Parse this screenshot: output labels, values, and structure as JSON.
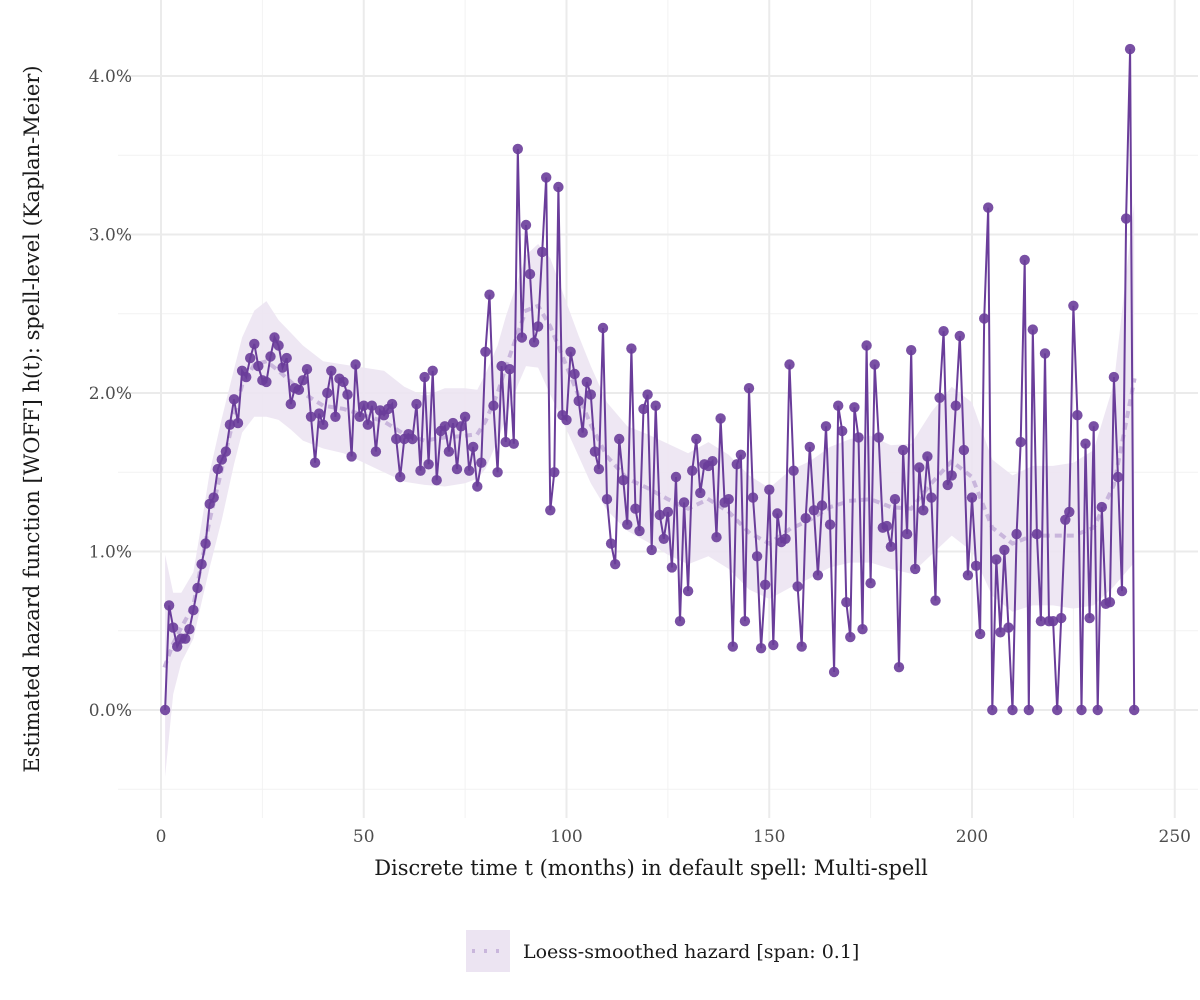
{
  "chart_data": {
    "type": "line",
    "title": "",
    "xlabel": "Discrete time t (months) in default spell: Multi-spell",
    "ylabel": "Estimated hazard function [WOFF] h(t): spell-level (Kaplan-Meier)",
    "xlim": [
      -10,
      255
    ],
    "ylim": [
      -0.7,
      4.3
    ],
    "y_unit": "%",
    "x_ticks": [
      0,
      50,
      100,
      150,
      200,
      250
    ],
    "x_tick_labels": [
      "0",
      "50",
      "100",
      "150",
      "200",
      "250"
    ],
    "y_ticks": [
      0,
      1,
      2,
      3,
      4
    ],
    "y_tick_labels": [
      "0.0%",
      "1.0%",
      "2.0%",
      "3.0%",
      "4.0%"
    ],
    "grid": true,
    "legend": {
      "position": "bottom",
      "entries": [
        "Loess-smoothed hazard [span: 0.1]"
      ]
    },
    "colors": {
      "line": "#6a3d9a",
      "points": "#6a3d9a",
      "smooth": "#c9b6dc",
      "band": "#ece4f2"
    },
    "series": [
      {
        "name": "hazard",
        "x": [
          1,
          2,
          3,
          4,
          5,
          6,
          7,
          8,
          9,
          10,
          11,
          12,
          13,
          14,
          15,
          16,
          17,
          18,
          19,
          20,
          21,
          22,
          23,
          24,
          25,
          26,
          27,
          28,
          29,
          30,
          31,
          32,
          33,
          34,
          35,
          36,
          37,
          38,
          39,
          40,
          41,
          42,
          43,
          44,
          45,
          46,
          47,
          48,
          49,
          50,
          51,
          52,
          53,
          54,
          55,
          56,
          57,
          58,
          59,
          60,
          61,
          62,
          63,
          64,
          65,
          66,
          67,
          68,
          69,
          70,
          71,
          72,
          73,
          74,
          75,
          76,
          77,
          78,
          79,
          80,
          81,
          82,
          83,
          84,
          85,
          86,
          87,
          88,
          89,
          90,
          91,
          92,
          93,
          94,
          95,
          96,
          97,
          98,
          99,
          100,
          101,
          102,
          103,
          104,
          105,
          106,
          107,
          108,
          109,
          110,
          111,
          112,
          113,
          114,
          115,
          116,
          117,
          118,
          119,
          120,
          121,
          122,
          123,
          124,
          125,
          126,
          127,
          128,
          129,
          130,
          131,
          132,
          133,
          134,
          135,
          136,
          137,
          138,
          139,
          140,
          141,
          142,
          143,
          144,
          145,
          146,
          147,
          148,
          149,
          150,
          151,
          152,
          153,
          154,
          155,
          156,
          157,
          158,
          159,
          160,
          161,
          162,
          163,
          164,
          165,
          166,
          167,
          168,
          169,
          170,
          171,
          172,
          173,
          174,
          175,
          176,
          177,
          178,
          179,
          180,
          181,
          182,
          183,
          184,
          185,
          186,
          187,
          188,
          189,
          190,
          191,
          192,
          193,
          194,
          195,
          196,
          197,
          198,
          199,
          200,
          201,
          202,
          203,
          204,
          205,
          206,
          207,
          208,
          209,
          210,
          211,
          212,
          213,
          214,
          215,
          216,
          217,
          218,
          219,
          220,
          221,
          222,
          223,
          224,
          225,
          226,
          227,
          228,
          229,
          230,
          231,
          232,
          233,
          234,
          235,
          236,
          237,
          238,
          239,
          240
        ],
        "values": [
          0.0,
          0.66,
          0.52,
          0.4,
          0.45,
          0.45,
          0.51,
          0.63,
          0.77,
          0.92,
          1.05,
          1.3,
          1.34,
          1.52,
          1.58,
          1.63,
          1.8,
          1.96,
          1.81,
          2.14,
          2.1,
          2.22,
          2.31,
          2.17,
          2.08,
          2.07,
          2.23,
          2.35,
          2.3,
          2.16,
          2.22,
          1.93,
          2.03,
          2.02,
          2.08,
          2.15,
          1.85,
          1.56,
          1.87,
          1.8,
          2.0,
          2.14,
          1.85,
          2.09,
          2.07,
          1.99,
          1.6,
          2.18,
          1.85,
          1.92,
          1.8,
          1.92,
          1.63,
          1.89,
          1.86,
          1.9,
          1.93,
          1.71,
          1.47,
          1.71,
          1.74,
          1.71,
          1.93,
          1.51,
          2.1,
          1.55,
          2.14,
          1.45,
          1.76,
          1.79,
          1.63,
          1.81,
          1.52,
          1.79,
          1.85,
          1.51,
          1.66,
          1.41,
          1.56,
          2.26,
          2.62,
          1.92,
          1.5,
          2.17,
          1.69,
          2.15,
          1.68,
          3.54,
          2.35,
          3.06,
          2.75,
          2.32,
          2.42,
          2.89,
          3.36,
          1.26,
          1.5,
          3.3,
          1.86,
          1.83,
          2.26,
          2.12,
          1.95,
          1.75,
          2.07,
          1.99,
          1.63,
          1.52,
          2.41,
          1.33,
          1.05,
          0.92,
          1.71,
          1.45,
          1.17,
          2.28,
          1.27,
          1.13,
          1.9,
          1.99,
          1.01,
          1.92,
          1.23,
          1.08,
          1.25,
          0.9,
          1.47,
          0.56,
          1.31,
          0.75,
          1.51,
          1.71,
          1.37,
          1.55,
          1.54,
          1.57,
          1.09,
          1.84,
          1.31,
          1.33,
          0.4,
          1.55,
          1.61,
          0.56,
          2.03,
          1.34,
          0.97,
          0.39,
          0.79,
          1.39,
          0.41,
          1.24,
          1.06,
          1.08,
          2.18,
          1.51,
          0.78,
          0.4,
          1.21,
          1.66,
          1.26,
          0.85,
          1.29,
          1.79,
          1.17,
          0.24,
          1.92,
          1.76,
          0.68,
          0.46,
          1.91,
          1.72,
          0.51,
          2.3,
          0.8,
          2.18,
          1.72,
          1.15,
          1.16,
          1.03,
          1.33,
          0.27,
          1.64,
          1.11,
          2.27,
          0.89,
          1.53,
          1.26,
          1.6,
          1.34,
          0.69,
          1.97,
          2.39,
          1.42,
          1.48,
          1.92,
          2.36,
          1.64,
          0.85,
          1.34,
          0.91,
          0.48,
          2.47,
          3.17,
          0.0,
          0.95,
          0.49,
          1.01,
          0.52,
          0.0,
          1.11,
          1.69,
          2.84,
          0.0,
          2.4,
          1.11,
          0.56,
          2.25,
          0.56,
          0.56,
          0.0,
          0.58,
          1.2,
          1.25,
          2.55,
          1.86,
          0.0,
          1.68,
          0.58,
          1.79,
          0.0,
          1.28,
          0.67,
          0.68,
          2.1,
          1.47,
          0.75,
          3.1,
          4.17,
          0.0
        ]
      },
      {
        "name": "Loess-smoothed hazard [span: 0.1]",
        "x": [
          1,
          3,
          5,
          8,
          10,
          12,
          15,
          18,
          20,
          23,
          26,
          29,
          32,
          35,
          40,
          45,
          50,
          55,
          60,
          65,
          70,
          75,
          78,
          80,
          83,
          85,
          88,
          90,
          93,
          96,
          100,
          103,
          106,
          110,
          115,
          120,
          125,
          130,
          135,
          140,
          145,
          150,
          155,
          160,
          165,
          170,
          175,
          180,
          185,
          190,
          195,
          200,
          205,
          210,
          215,
          220,
          225,
          230,
          235,
          240
        ],
        "values": [
          0.28,
          0.42,
          0.52,
          0.66,
          0.93,
          1.2,
          1.52,
          1.85,
          2.05,
          2.18,
          2.2,
          2.14,
          2.07,
          2.0,
          1.92,
          1.9,
          1.86,
          1.82,
          1.74,
          1.7,
          1.72,
          1.73,
          1.74,
          1.82,
          2.0,
          2.16,
          2.38,
          2.52,
          2.55,
          2.42,
          2.17,
          1.98,
          1.8,
          1.6,
          1.46,
          1.4,
          1.33,
          1.27,
          1.33,
          1.25,
          1.12,
          1.05,
          1.14,
          1.2,
          1.28,
          1.32,
          1.33,
          1.28,
          1.27,
          1.43,
          1.57,
          1.47,
          1.15,
          1.05,
          1.1,
          1.1,
          1.1,
          1.15,
          1.42,
          2.08
        ]
      }
    ],
    "band": {
      "x": [
        1,
        3,
        5,
        8,
        10,
        12,
        15,
        18,
        20,
        23,
        26,
        29,
        32,
        35,
        40,
        45,
        50,
        55,
        60,
        65,
        70,
        75,
        78,
        80,
        83,
        85,
        88,
        90,
        93,
        96,
        100,
        103,
        106,
        110,
        115,
        120,
        125,
        130,
        135,
        140,
        145,
        150,
        155,
        160,
        165,
        170,
        175,
        180,
        185,
        190,
        195,
        200,
        205,
        210,
        215,
        220,
        225,
        230,
        235,
        240
      ],
      "lower": [
        -0.42,
        0.1,
        0.3,
        0.45,
        0.68,
        0.9,
        1.2,
        1.55,
        1.75,
        1.85,
        1.85,
        1.83,
        1.77,
        1.7,
        1.65,
        1.62,
        1.56,
        1.5,
        1.44,
        1.42,
        1.41,
        1.43,
        1.46,
        1.52,
        1.7,
        1.84,
        2.05,
        2.17,
        2.16,
        1.99,
        1.77,
        1.6,
        1.43,
        1.26,
        1.13,
        1.06,
        0.98,
        0.92,
        0.97,
        0.89,
        0.76,
        0.7,
        0.77,
        0.83,
        0.9,
        0.93,
        0.93,
        0.89,
        0.86,
        0.98,
        1.1,
        1.0,
        0.72,
        0.62,
        0.66,
        0.66,
        0.64,
        0.66,
        0.78,
        0.93
      ],
      "upper": [
        0.98,
        0.74,
        0.74,
        0.87,
        1.18,
        1.5,
        1.84,
        2.15,
        2.35,
        2.52,
        2.58,
        2.46,
        2.38,
        2.3,
        2.2,
        2.18,
        2.16,
        2.14,
        2.04,
        1.98,
        2.03,
        2.03,
        2.02,
        2.12,
        2.3,
        2.48,
        2.71,
        2.87,
        2.94,
        2.85,
        2.57,
        2.36,
        2.17,
        1.94,
        1.79,
        1.74,
        1.68,
        1.62,
        1.69,
        1.61,
        1.48,
        1.4,
        1.51,
        1.57,
        1.66,
        1.71,
        1.73,
        1.67,
        1.68,
        1.88,
        2.04,
        1.94,
        1.58,
        1.48,
        1.54,
        1.54,
        1.56,
        1.64,
        2.06,
        3.2
      ]
    }
  }
}
